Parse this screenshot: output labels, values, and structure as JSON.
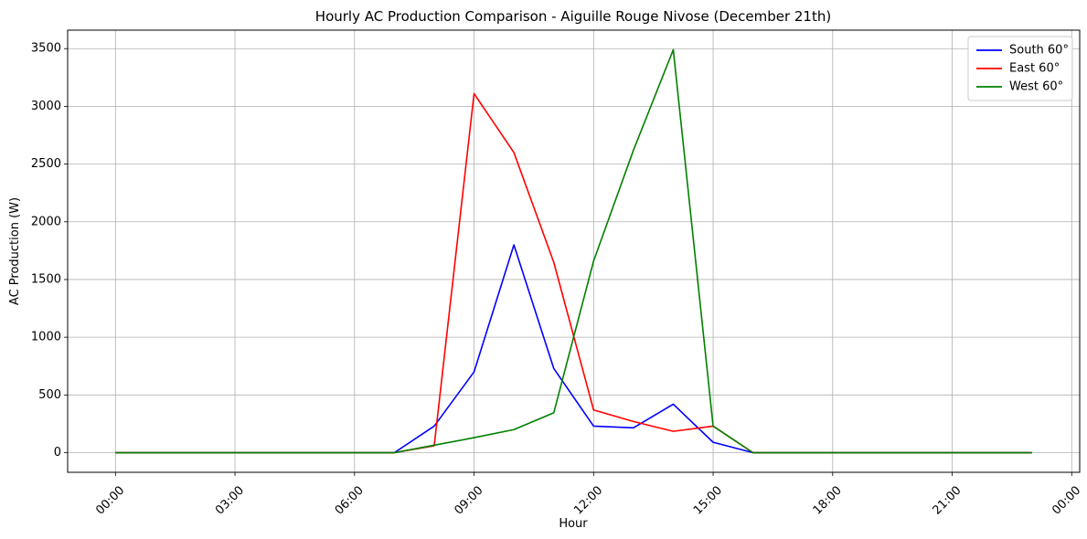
{
  "chart_data": {
    "type": "line",
    "title": "Hourly AC Production Comparison - Aiguille Rouge Nivose (December 21th)",
    "xlabel": "Hour",
    "ylabel": "AC Production (W)",
    "x": [
      0,
      1,
      2,
      3,
      4,
      5,
      6,
      7,
      8,
      9,
      10,
      11,
      12,
      13,
      14,
      15,
      16,
      17,
      18,
      19,
      20,
      21,
      22,
      23
    ],
    "xlim": [
      -1.2,
      24.2
    ],
    "ylim": [
      -170,
      3660
    ],
    "x_ticks": [
      0,
      3,
      6,
      9,
      12,
      15,
      18,
      21,
      24
    ],
    "x_tick_labels": [
      "00:00",
      "03:00",
      "06:00",
      "09:00",
      "12:00",
      "15:00",
      "18:00",
      "21:00",
      "00:00"
    ],
    "y_ticks": [
      0,
      500,
      1000,
      1500,
      2000,
      2500,
      3000,
      3500
    ],
    "y_tick_labels": [
      "0",
      "500",
      "1000",
      "1500",
      "2000",
      "2500",
      "3000",
      "3500"
    ],
    "grid": true,
    "legend_position": "top-right",
    "series": [
      {
        "name": "South 60°",
        "color": "#0000ff",
        "values": [
          0,
          0,
          0,
          0,
          0,
          0,
          0,
          0,
          230,
          700,
          1800,
          730,
          230,
          215,
          420,
          90,
          0,
          0,
          0,
          0,
          0,
          0,
          0,
          0
        ]
      },
      {
        "name": "East 60°",
        "color": "#ff0000",
        "values": [
          0,
          0,
          0,
          0,
          0,
          0,
          0,
          0,
          60,
          3110,
          2600,
          1650,
          370,
          270,
          185,
          230,
          0,
          0,
          0,
          0,
          0,
          0,
          0,
          0
        ]
      },
      {
        "name": "West 60°",
        "color": "#008000",
        "values": [
          0,
          0,
          0,
          0,
          0,
          0,
          0,
          0,
          65,
          130,
          200,
          345,
          1660,
          2620,
          3490,
          230,
          0,
          0,
          0,
          0,
          0,
          0,
          0,
          0
        ]
      }
    ]
  }
}
